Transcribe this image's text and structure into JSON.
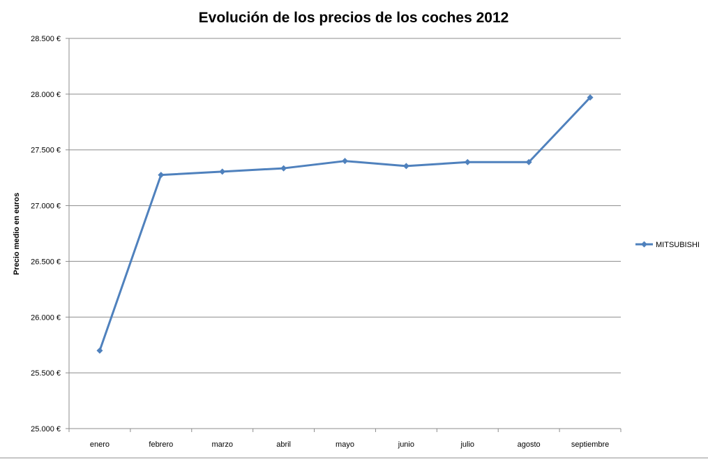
{
  "chart_data": {
    "type": "line",
    "title": "Evolución de los precios de los coches 2012",
    "xlabel": "",
    "ylabel": "Precio medio en euros",
    "categories": [
      "enero",
      "febrero",
      "marzo",
      "abril",
      "mayo",
      "junio",
      "julio",
      "agosto",
      "septiembre"
    ],
    "series": [
      {
        "name": "MITSUBISHI",
        "values": [
          25700,
          27275,
          27305,
          27335,
          27400,
          27355,
          27390,
          27390,
          27970
        ],
        "color": "#4F81BD",
        "marker": "diamond"
      }
    ],
    "ylim": [
      25000,
      28500
    ],
    "y_ticks": [
      "25.000 €",
      "25.500 €",
      "26.000 €",
      "26.500 €",
      "27.000 €",
      "27.500 €",
      "28.000 €",
      "28.500 €"
    ],
    "y_tick_values": [
      25000,
      25500,
      26000,
      26500,
      27000,
      27500,
      28000,
      28500
    ],
    "grid": true,
    "legend_position": "right"
  }
}
